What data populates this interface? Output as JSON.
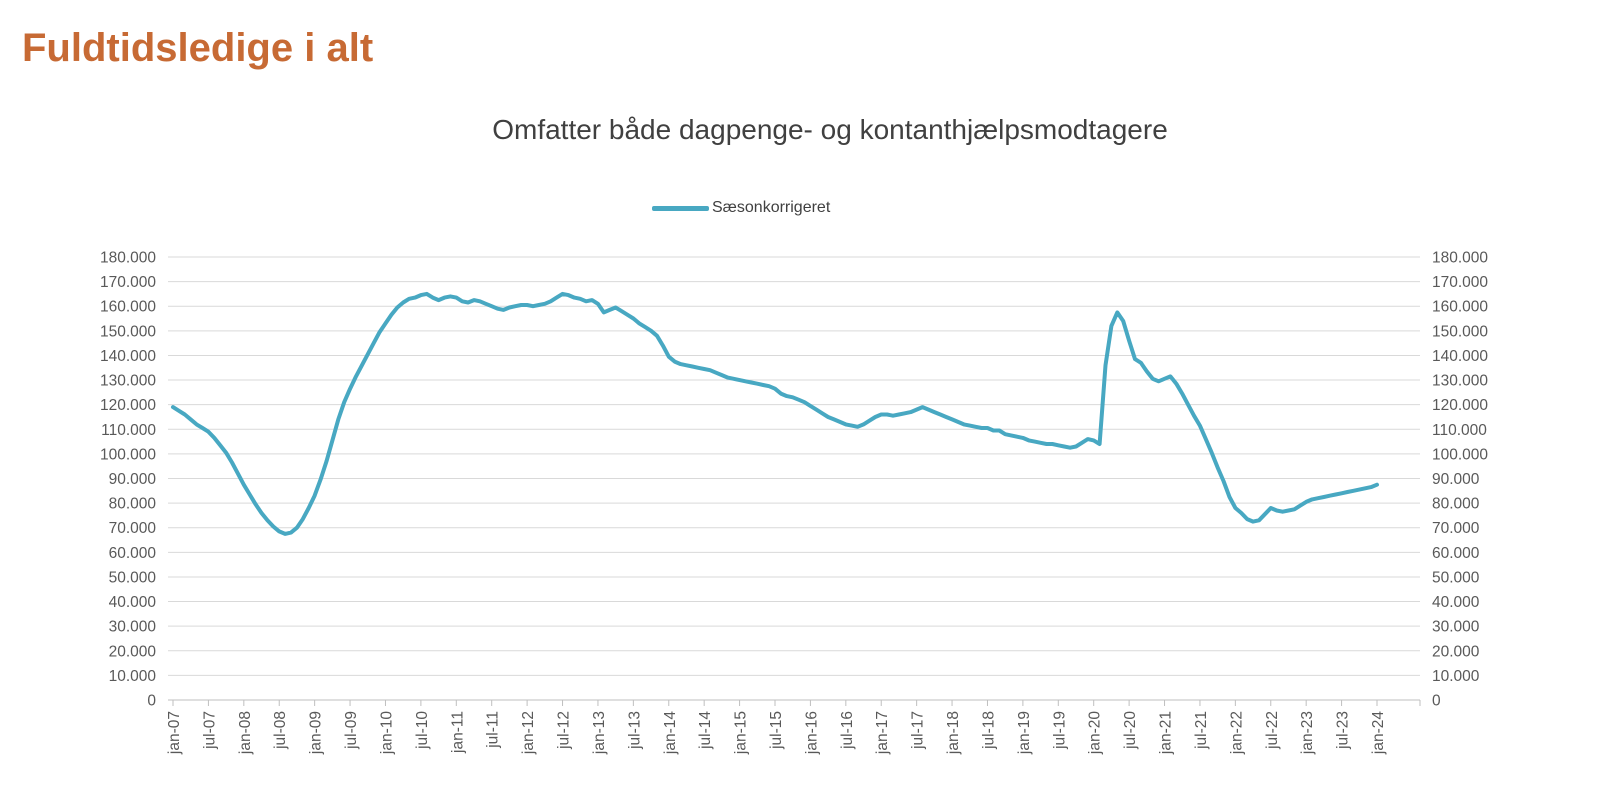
{
  "page": {
    "title": "Fuldtidsledige i alt"
  },
  "chart": {
    "subtitle": "Omfatter både dagpenge- og kontanthjælpsmodtagere",
    "legend_label": "Sæsonkorrigeret"
  },
  "colors": {
    "title": "#C76A34",
    "subtitle": "#404040",
    "legend_text": "#404040",
    "axis_text": "#595959",
    "gridline": "#D9D9D9",
    "axis_line": "#BFBFBF",
    "series": "#48A8C2",
    "background": "#FFFFFF"
  },
  "chart_data": {
    "type": "line",
    "title": "Omfatter både dagpenge- og kontanthjælpsmodtagere",
    "legend_position": "top",
    "grid": "horizontal",
    "x_frequency": "monthly",
    "x_start": "jan-07",
    "x_end": "jan-24",
    "x_tick_every_n_months": 6,
    "x_tick_labels": [
      "jan-07",
      "jul-07",
      "jan-08",
      "jul-08",
      "jan-09",
      "jul-09",
      "jan-10",
      "jul-10",
      "jan-11",
      "jul-11",
      "jan-12",
      "jul-12",
      "jan-13",
      "jul-13",
      "jan-14",
      "jul-14",
      "jan-15",
      "jul-15",
      "jan-16",
      "jul-16",
      "jan-17",
      "jul-17",
      "jan-18",
      "jul-18",
      "jan-19",
      "jul-19",
      "jan-20",
      "jul-20",
      "jan-21",
      "jul-21",
      "jan-22",
      "jul-22",
      "jan-23",
      "jul-23",
      "jan-24"
    ],
    "y_min": 0,
    "y_max": 180000,
    "y_step": 10000,
    "y_axis_sides": "both",
    "y_tick_labels": [
      "0",
      "10.000",
      "20.000",
      "30.000",
      "40.000",
      "50.000",
      "60.000",
      "70.000",
      "80.000",
      "90.000",
      "100.000",
      "110.000",
      "120.000",
      "130.000",
      "140.000",
      "150.000",
      "160.000",
      "170.000",
      "180.000"
    ],
    "series": [
      {
        "name": "Sæsonkorrigeret",
        "color": "#48A8C2",
        "values": [
          119000,
          117500,
          116000,
          114000,
          112000,
          110500,
          109000,
          106500,
          103500,
          100500,
          96500,
          92000,
          87500,
          83500,
          79500,
          76000,
          73000,
          70500,
          68500,
          67500,
          68000,
          70000,
          73500,
          78000,
          83000,
          89500,
          97000,
          105500,
          114000,
          121000,
          126500,
          131500,
          136000,
          140500,
          145000,
          149500,
          153000,
          156500,
          159500,
          161500,
          163000,
          163500,
          164500,
          165000,
          163500,
          162500,
          163500,
          164000,
          163500,
          162000,
          161500,
          162500,
          162000,
          161000,
          160000,
          159000,
          158500,
          159500,
          160000,
          160500,
          160500,
          160000,
          160500,
          161000,
          162000,
          163500,
          165000,
          164500,
          163500,
          163000,
          162000,
          162500,
          161000,
          157500,
          158500,
          159500,
          158000,
          156500,
          155000,
          153000,
          151500,
          150000,
          148000,
          144000,
          139500,
          137500,
          136500,
          136000,
          135500,
          135000,
          134500,
          134000,
          133000,
          132000,
          131000,
          130500,
          130000,
          129500,
          129000,
          128500,
          128000,
          127500,
          126500,
          124500,
          123500,
          123000,
          122000,
          121000,
          119500,
          118000,
          116500,
          115000,
          114000,
          113000,
          112000,
          111500,
          111000,
          112000,
          113500,
          115000,
          116000,
          116000,
          115500,
          116000,
          116500,
          117000,
          118000,
          119000,
          118000,
          117000,
          116000,
          115000,
          114000,
          113000,
          112000,
          111500,
          111000,
          110500,
          110500,
          109500,
          109500,
          108000,
          107500,
          107000,
          106500,
          105500,
          105000,
          104500,
          104000,
          104000,
          103500,
          103000,
          102500,
          103000,
          104500,
          106000,
          105500,
          104000,
          136000,
          152000,
          157500,
          154000,
          146000,
          138500,
          137000,
          133500,
          130500,
          129500,
          130500,
          131500,
          128500,
          124500,
          120000,
          115500,
          111500,
          106000,
          100500,
          94500,
          89000,
          82500,
          78000,
          76000,
          73500,
          72500,
          73000,
          75500,
          78000,
          77000,
          76500,
          77000,
          77500,
          79000,
          80500,
          81500,
          82000,
          82500,
          83000,
          83500,
          84000,
          84500,
          85000,
          85500,
          86000,
          86500,
          87500
        ]
      }
    ]
  }
}
